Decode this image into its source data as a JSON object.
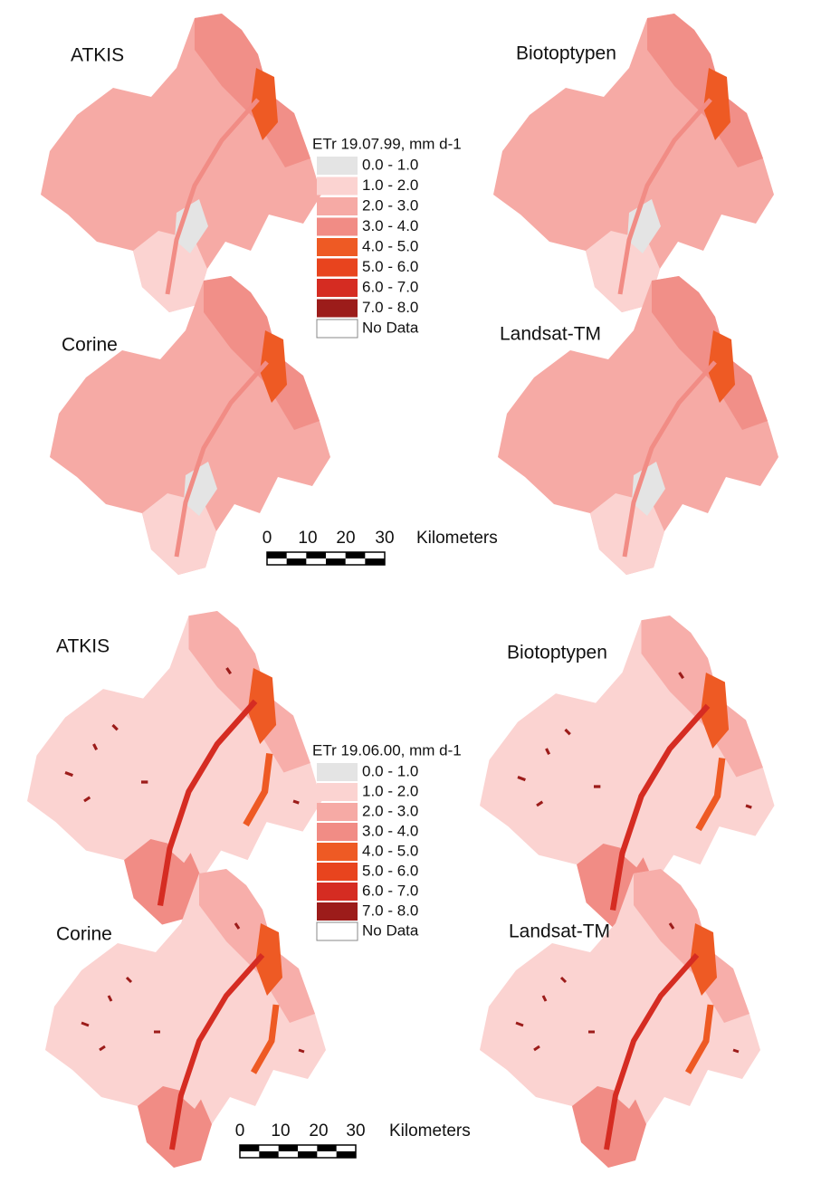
{
  "panels": [
    {
      "maps": [
        "ATKIS",
        "Biotoptypen",
        "Corine",
        "Landsat-TM"
      ],
      "legend": {
        "title": "ETr 19.07.99, mm d-1",
        "items": [
          {
            "label": "0.0 - 1.0",
            "color": "#e4e4e4"
          },
          {
            "label": "1.0 - 2.0",
            "color": "#fbd3d1"
          },
          {
            "label": "2.0 - 3.0",
            "color": "#f6aaa5"
          },
          {
            "label": "3.0 - 4.0",
            "color": "#f18c85"
          },
          {
            "label": "4.0 - 5.0",
            "color": "#ee5a24"
          },
          {
            "label": "5.0 - 6.0",
            "color": "#e8441e"
          },
          {
            "label": "6.0 - 7.0",
            "color": "#d52c22"
          },
          {
            "label": "7.0 - 8.0",
            "color": "#9c1c1a"
          },
          {
            "label": "No Data",
            "color": "#ffffff"
          }
        ]
      },
      "scale": {
        "ticks": [
          0,
          10,
          20,
          30
        ],
        "unit": "Kilometers"
      }
    },
    {
      "maps": [
        "ATKIS",
        "Biotoptypen",
        "Corine",
        "Landsat-TM"
      ],
      "legend": {
        "title": "ETr 19.06.00, mm d-1",
        "items": [
          {
            "label": "0.0 - 1.0",
            "color": "#e4e4e4"
          },
          {
            "label": "1.0 - 2.0",
            "color": "#fbd3d1"
          },
          {
            "label": "2.0 - 3.0",
            "color": "#f6aaa5"
          },
          {
            "label": "3.0 - 4.0",
            "color": "#f18c85"
          },
          {
            "label": "4.0 - 5.0",
            "color": "#ee5a24"
          },
          {
            "label": "5.0 - 6.0",
            "color": "#e8441e"
          },
          {
            "label": "6.0 - 7.0",
            "color": "#d52c22"
          },
          {
            "label": "7.0 - 8.0",
            "color": "#9c1c1a"
          },
          {
            "label": "No Data",
            "color": "#ffffff"
          }
        ]
      },
      "scale": {
        "ticks": [
          0,
          10,
          20,
          30
        ],
        "unit": "Kilometers"
      }
    }
  ]
}
